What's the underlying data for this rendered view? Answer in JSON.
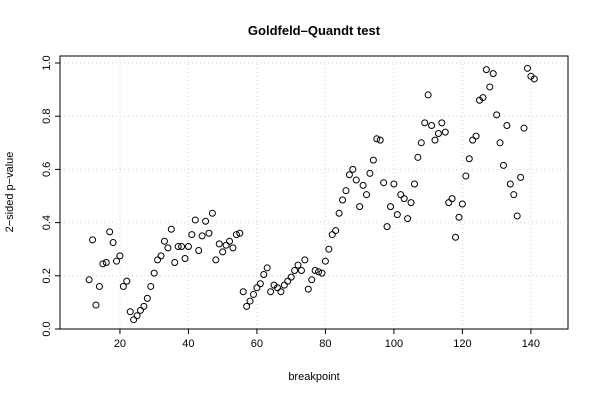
{
  "chart_data": {
    "type": "scatter",
    "title": "Goldfeld–Quandt test",
    "xlabel": "breakpoint",
    "ylabel": "2−sided p−value",
    "xlim": [
      6,
      145
    ],
    "ylim": [
      0,
      1
    ],
    "x_ticks": [
      20,
      40,
      60,
      80,
      100,
      120,
      140
    ],
    "y_ticks": [
      0.0,
      0.2,
      0.4,
      0.6,
      0.8,
      1.0
    ],
    "y_tick_labels": [
      "0.0",
      "0.2",
      "0.4",
      "0.6",
      "0.8",
      "1.0"
    ],
    "grid": true,
    "marker": "open-circle",
    "points": [
      [
        11,
        0.185
      ],
      [
        12,
        0.335
      ],
      [
        13,
        0.09
      ],
      [
        14,
        0.16
      ],
      [
        15,
        0.245
      ],
      [
        16,
        0.25
      ],
      [
        17,
        0.365
      ],
      [
        18,
        0.325
      ],
      [
        19,
        0.255
      ],
      [
        20,
        0.275
      ],
      [
        21,
        0.16
      ],
      [
        22,
        0.18
      ],
      [
        23,
        0.065
      ],
      [
        24,
        0.035
      ],
      [
        25,
        0.05
      ],
      [
        26,
        0.07
      ],
      [
        27,
        0.085
      ],
      [
        28,
        0.115
      ],
      [
        29,
        0.16
      ],
      [
        30,
        0.21
      ],
      [
        31,
        0.26
      ],
      [
        32,
        0.275
      ],
      [
        33,
        0.33
      ],
      [
        34,
        0.305
      ],
      [
        35,
        0.375
      ],
      [
        36,
        0.25
      ],
      [
        37,
        0.31
      ],
      [
        38,
        0.31
      ],
      [
        39,
        0.265
      ],
      [
        40,
        0.31
      ],
      [
        41,
        0.355
      ],
      [
        42,
        0.41
      ],
      [
        43,
        0.295
      ],
      [
        44,
        0.35
      ],
      [
        45,
        0.405
      ],
      [
        46,
        0.36
      ],
      [
        47,
        0.435
      ],
      [
        48,
        0.26
      ],
      [
        49,
        0.32
      ],
      [
        50,
        0.29
      ],
      [
        51,
        0.315
      ],
      [
        52,
        0.33
      ],
      [
        53,
        0.305
      ],
      [
        54,
        0.355
      ],
      [
        55,
        0.36
      ],
      [
        56,
        0.14
      ],
      [
        57,
        0.085
      ],
      [
        58,
        0.105
      ],
      [
        59,
        0.13
      ],
      [
        60,
        0.155
      ],
      [
        61,
        0.17
      ],
      [
        62,
        0.205
      ],
      [
        63,
        0.23
      ],
      [
        64,
        0.14
      ],
      [
        65,
        0.165
      ],
      [
        66,
        0.155
      ],
      [
        67,
        0.14
      ],
      [
        68,
        0.165
      ],
      [
        69,
        0.18
      ],
      [
        70,
        0.195
      ],
      [
        71,
        0.22
      ],
      [
        72,
        0.24
      ],
      [
        73,
        0.22
      ],
      [
        74,
        0.26
      ],
      [
        75,
        0.15
      ],
      [
        76,
        0.185
      ],
      [
        77,
        0.22
      ],
      [
        78,
        0.215
      ],
      [
        79,
        0.21
      ],
      [
        80,
        0.255
      ],
      [
        81,
        0.3
      ],
      [
        82,
        0.355
      ],
      [
        83,
        0.37
      ],
      [
        84,
        0.435
      ],
      [
        85,
        0.485
      ],
      [
        86,
        0.52
      ],
      [
        87,
        0.58
      ],
      [
        88,
        0.6
      ],
      [
        89,
        0.56
      ],
      [
        90,
        0.46
      ],
      [
        91,
        0.54
      ],
      [
        92,
        0.505
      ],
      [
        93,
        0.585
      ],
      [
        94,
        0.635
      ],
      [
        95,
        0.715
      ],
      [
        96,
        0.71
      ],
      [
        97,
        0.55
      ],
      [
        98,
        0.385
      ],
      [
        99,
        0.46
      ],
      [
        100,
        0.545
      ],
      [
        101,
        0.43
      ],
      [
        102,
        0.505
      ],
      [
        103,
        0.49
      ],
      [
        104,
        0.415
      ],
      [
        105,
        0.475
      ],
      [
        106,
        0.545
      ],
      [
        107,
        0.645
      ],
      [
        108,
        0.7
      ],
      [
        109,
        0.775
      ],
      [
        110,
        0.88
      ],
      [
        111,
        0.765
      ],
      [
        112,
        0.71
      ],
      [
        113,
        0.735
      ],
      [
        114,
        0.775
      ],
      [
        115,
        0.74
      ],
      [
        116,
        0.475
      ],
      [
        117,
        0.49
      ],
      [
        118,
        0.345
      ],
      [
        119,
        0.42
      ],
      [
        120,
        0.47
      ],
      [
        121,
        0.575
      ],
      [
        122,
        0.64
      ],
      [
        123,
        0.71
      ],
      [
        124,
        0.725
      ],
      [
        125,
        0.86
      ],
      [
        126,
        0.87
      ],
      [
        127,
        0.975
      ],
      [
        128,
        0.91
      ],
      [
        129,
        0.96
      ],
      [
        130,
        0.805
      ],
      [
        131,
        0.7
      ],
      [
        132,
        0.615
      ],
      [
        133,
        0.765
      ],
      [
        134,
        0.545
      ],
      [
        135,
        0.505
      ],
      [
        136,
        0.425
      ],
      [
        137,
        0.57
      ],
      [
        138,
        0.755
      ],
      [
        139,
        0.98
      ],
      [
        140,
        0.95
      ],
      [
        141,
        0.94
      ]
    ]
  }
}
